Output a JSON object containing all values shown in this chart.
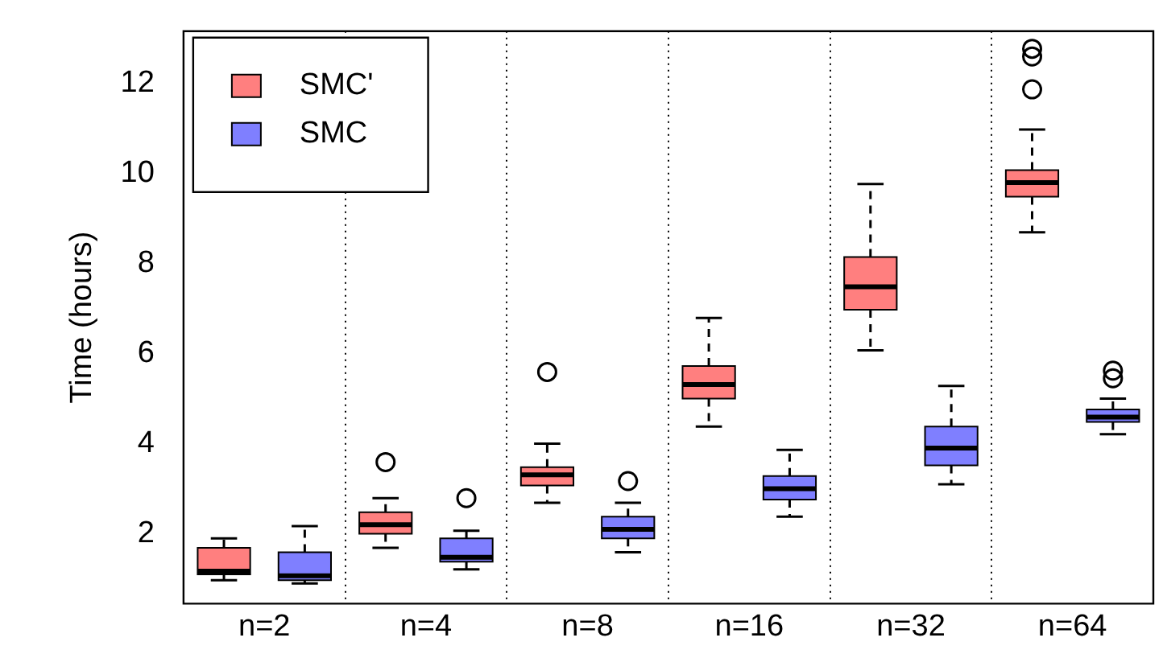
{
  "chart_data": {
    "type": "box",
    "ylabel": "Time (hours)",
    "categories": [
      "n=2",
      "n=4",
      "n=8",
      "n=16",
      "n=32",
      "n=64"
    ],
    "ylim": [
      0.45,
      13.15
    ],
    "yticks": [
      2,
      4,
      6,
      8,
      10,
      12
    ],
    "grid": "x",
    "legend": "top left",
    "series": [
      {
        "name": "SMC'",
        "color": "#ff7f7f",
        "boxes": [
          {
            "low": 0.97,
            "q1": 1.1,
            "median": 1.17,
            "q3": 1.69,
            "high": 1.9
          },
          {
            "low": 1.69,
            "q1": 2.0,
            "median": 2.2,
            "q3": 2.48,
            "high": 2.79,
            "outliers": [
              3.59
            ]
          },
          {
            "low": 2.69,
            "q1": 3.07,
            "median": 3.31,
            "q3": 3.48,
            "high": 4.0,
            "outliers": [
              5.59
            ]
          },
          {
            "low": 4.38,
            "q1": 5.0,
            "median": 5.31,
            "q3": 5.72,
            "high": 6.79
          },
          {
            "low": 6.07,
            "q1": 6.97,
            "median": 7.48,
            "q3": 8.14,
            "high": 9.76
          },
          {
            "low": 8.69,
            "q1": 9.48,
            "median": 9.79,
            "q3": 10.07,
            "high": 10.97,
            "outliers": [
              11.86,
              12.59,
              12.76
            ]
          }
        ]
      },
      {
        "name": "SMC",
        "color": "#7f7fff",
        "boxes": [
          {
            "low": 0.9,
            "q1": 0.97,
            "median": 1.07,
            "q3": 1.59,
            "high": 2.17
          },
          {
            "low": 1.21,
            "q1": 1.38,
            "median": 1.48,
            "q3": 1.9,
            "high": 2.07,
            "outliers": [
              2.79
            ]
          },
          {
            "low": 1.59,
            "q1": 1.9,
            "median": 2.1,
            "q3": 2.38,
            "high": 2.69,
            "outliers": [
              3.17
            ]
          },
          {
            "low": 2.38,
            "q1": 2.76,
            "median": 3.0,
            "q3": 3.28,
            "high": 3.86
          },
          {
            "low": 3.1,
            "q1": 3.52,
            "median": 3.9,
            "q3": 4.38,
            "high": 5.28
          },
          {
            "low": 4.21,
            "q1": 4.48,
            "median": 4.59,
            "q3": 4.76,
            "high": 5.0,
            "outliers": [
              5.45,
              5.62
            ]
          }
        ]
      }
    ]
  }
}
